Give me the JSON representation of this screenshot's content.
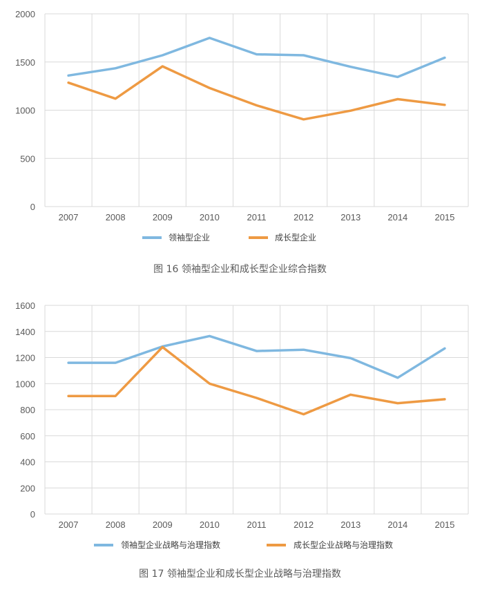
{
  "figures": [
    {
      "caption": "图 16   领袖型企业和成长型企业综合指数",
      "chart_data": {
        "type": "line",
        "categories": [
          "2007",
          "2008",
          "2009",
          "2010",
          "2011",
          "2012",
          "2013",
          "2014",
          "2015"
        ],
        "ylim": [
          0,
          2000
        ],
        "yticks": [
          0,
          500,
          1000,
          1500,
          2000
        ],
        "grid": true,
        "legend_position": "bottom",
        "series": [
          {
            "name": "领袖型企业",
            "color": "#7fb8e0",
            "values": [
              1360,
              1435,
              1570,
              1750,
              1580,
              1570,
              1450,
              1345,
              1545
            ]
          },
          {
            "name": "成长型企业",
            "color": "#ee9a43",
            "values": [
              1285,
              1120,
              1455,
              1230,
              1050,
              905,
              995,
              1115,
              1055
            ]
          }
        ]
      }
    },
    {
      "caption": "图 17   领袖型企业和成长型企业战略与治理指数",
      "chart_data": {
        "type": "line",
        "categories": [
          "2007",
          "2008",
          "2009",
          "2010",
          "2011",
          "2012",
          "2013",
          "2014",
          "2015"
        ],
        "ylim": [
          0,
          1600
        ],
        "yticks": [
          0,
          200,
          400,
          600,
          800,
          1000,
          1200,
          1400,
          1600
        ],
        "grid": true,
        "legend_position": "bottom",
        "series": [
          {
            "name": "领袖型企业战略与治理指数",
            "color": "#7fb8e0",
            "values": [
              1160,
              1160,
              1285,
              1365,
              1250,
              1260,
              1195,
              1045,
              1270
            ]
          },
          {
            "name": "成长型企业战略与治理指数",
            "color": "#ee9a43",
            "values": [
              905,
              905,
              1280,
              1000,
              890,
              765,
              915,
              850,
              880
            ]
          }
        ]
      }
    }
  ]
}
